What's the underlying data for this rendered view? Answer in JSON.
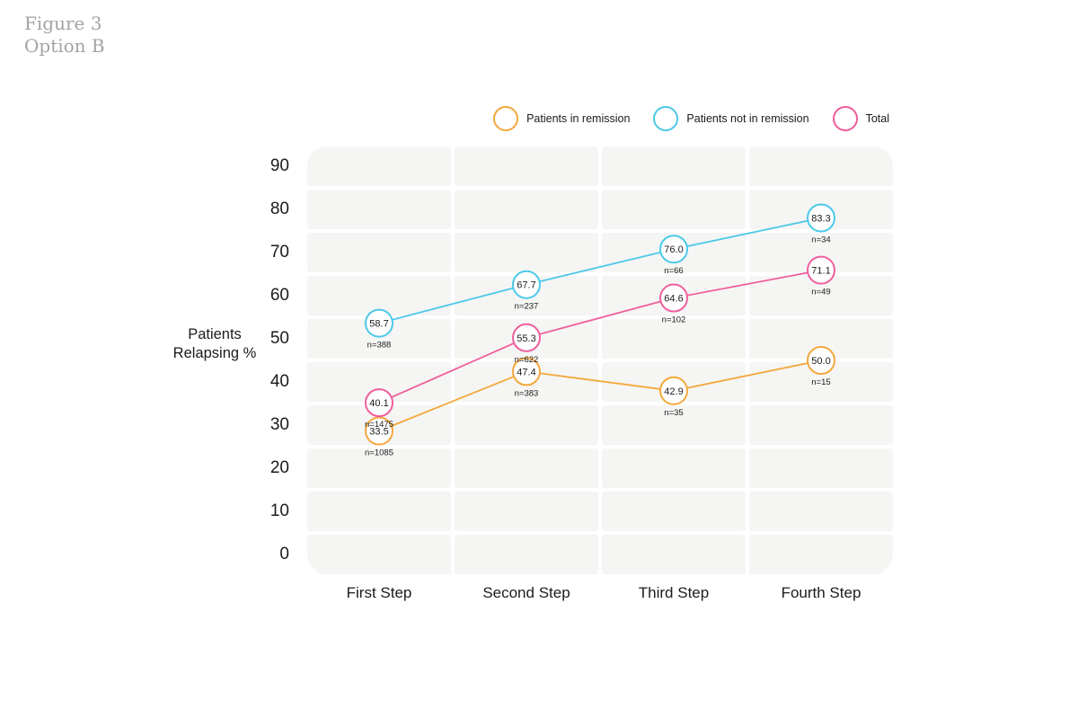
{
  "title": {
    "line1": "Figure 3",
    "line2": "Option B"
  },
  "colors": {
    "remission_orange": "#F3A83C",
    "not_remission_cyan": "#4CC9E8",
    "total_pink": "#EF5E9C",
    "grid_band": "#F5F5F3",
    "text": "#1B1B1B",
    "title_gray": "#A5A3A1"
  },
  "chart_data": {
    "type": "line",
    "title": "",
    "categories": [
      "First Step",
      "Second Step",
      "Third Step",
      "Fourth Step"
    ],
    "ylabel": "Patients Relapsing %",
    "ylabel_lines": {
      "line1": "Patients",
      "line2": "Relapsing %"
    },
    "yticks": [
      90,
      80,
      70,
      60,
      50,
      40,
      30,
      20,
      10,
      0
    ],
    "ylim": [
      0,
      100
    ],
    "grid": "banded-cells",
    "legend_position": "top-right",
    "series": [
      {
        "name": "Patients in remission",
        "color": "#F3A83C",
        "values": [
          33.5,
          47.4,
          42.9,
          50.0
        ],
        "value_labels": [
          "33.5",
          "47.4",
          "42.9",
          "50.0"
        ],
        "n_labels": [
          "n=1085",
          "n=383",
          "n=35",
          "n=15"
        ]
      },
      {
        "name": "Patients not in remission",
        "color": "#4CC9E8",
        "values": [
          58.7,
          67.7,
          76.0,
          83.3
        ],
        "value_labels": [
          "58.7",
          "67.7",
          "76.0",
          "83.3"
        ],
        "n_labels": [
          "n=388",
          "n=237",
          "n=66",
          "n=34"
        ]
      },
      {
        "name": "Total",
        "color": "#EF5E9C",
        "values": [
          40.1,
          55.3,
          64.6,
          71.1
        ],
        "value_labels": [
          "40.1",
          "55.3",
          "64.6",
          "71.1"
        ],
        "n_labels": [
          "n=1475",
          "n=622",
          "n=102",
          "n=49"
        ]
      }
    ]
  }
}
